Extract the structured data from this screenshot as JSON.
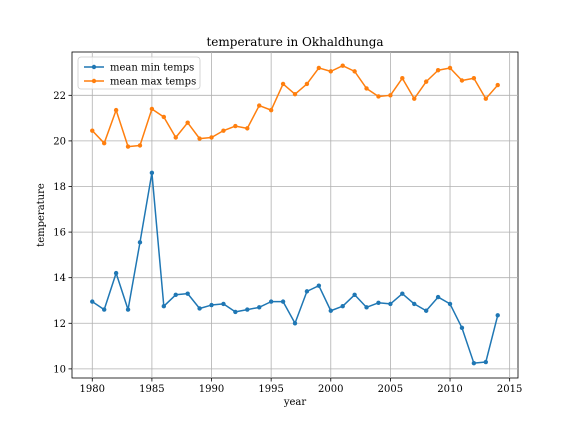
{
  "chart_data": {
    "type": "line",
    "title": "temperature in Okhaldhunga",
    "xlabel": "year",
    "ylabel": "temperature",
    "xlim": [
      1978.3,
      2015.7
    ],
    "ylim": [
      9.6,
      23.9
    ],
    "xticks": [
      1980,
      1985,
      1990,
      1995,
      2000,
      2005,
      2010,
      2015
    ],
    "yticks": [
      10,
      12,
      14,
      16,
      18,
      20,
      22
    ],
    "grid": true,
    "legend_position": "upper-left",
    "x": [
      1980,
      1981,
      1982,
      1983,
      1984,
      1985,
      1986,
      1987,
      1988,
      1989,
      1990,
      1991,
      1992,
      1993,
      1994,
      1995,
      1996,
      1997,
      1998,
      1999,
      2000,
      2001,
      2002,
      2003,
      2004,
      2005,
      2006,
      2007,
      2008,
      2009,
      2010,
      2011,
      2012,
      2013,
      2014
    ],
    "series": [
      {
        "name": "mean min temps",
        "color": "#1f77b4",
        "values": [
          12.95,
          12.6,
          14.2,
          12.6,
          15.55,
          18.6,
          12.75,
          13.25,
          13.3,
          12.65,
          12.8,
          12.85,
          12.5,
          12.6,
          12.7,
          12.95,
          12.95,
          12.0,
          13.4,
          13.65,
          12.55,
          12.75,
          13.25,
          12.7,
          12.9,
          12.85,
          13.3,
          12.85,
          12.55,
          13.15,
          12.85,
          11.8,
          10.25,
          10.3,
          12.35
        ]
      },
      {
        "name": "mean max temps",
        "color": "#ff7f0e",
        "values": [
          20.45,
          19.9,
          21.35,
          19.75,
          19.8,
          21.4,
          21.05,
          20.15,
          20.8,
          20.1,
          20.15,
          20.45,
          20.65,
          20.55,
          21.55,
          21.35,
          22.5,
          22.05,
          22.5,
          23.2,
          23.05,
          23.3,
          23.05,
          22.3,
          21.95,
          22.0,
          22.75,
          21.85,
          22.6,
          23.1,
          23.2,
          22.65,
          22.75,
          21.85,
          22.45
        ]
      }
    ]
  }
}
